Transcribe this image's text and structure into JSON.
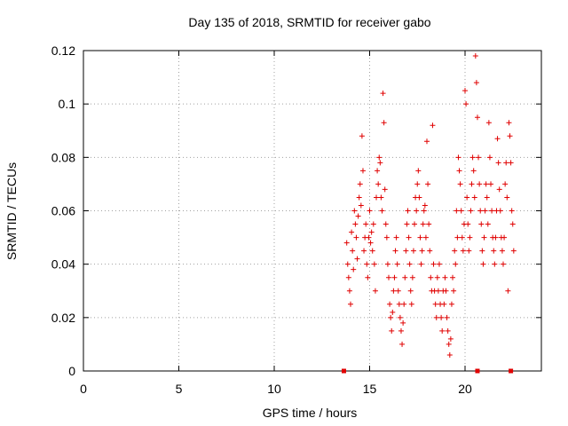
{
  "chart_data": {
    "type": "scatter",
    "title": "Day 135 of 2018, SRMTID for receiver gabo",
    "xlabel": "GPS time / hours",
    "ylabel": "SRMTID / TECUs",
    "xlim": [
      0,
      24
    ],
    "ylim": [
      0,
      0.12
    ],
    "x_ticks": [
      0,
      5,
      10,
      15,
      20
    ],
    "y_ticks": [
      0,
      0.02,
      0.04,
      0.06,
      0.08,
      0.1,
      0.12
    ],
    "grid": true,
    "marker": "+",
    "color": "#e00000",
    "series": [
      {
        "name": "SRMTID",
        "points": [
          [
            13.8,
            0.048
          ],
          [
            13.85,
            0.04
          ],
          [
            13.9,
            0.035
          ],
          [
            13.95,
            0.03
          ],
          [
            14.0,
            0.025
          ],
          [
            14.05,
            0.052
          ],
          [
            14.1,
            0.045
          ],
          [
            14.15,
            0.038
          ],
          [
            14.2,
            0.06
          ],
          [
            14.25,
            0.055
          ],
          [
            14.3,
            0.05
          ],
          [
            14.35,
            0.042
          ],
          [
            14.4,
            0.058
          ],
          [
            14.45,
            0.065
          ],
          [
            14.5,
            0.07
          ],
          [
            14.55,
            0.062
          ],
          [
            14.6,
            0.088
          ],
          [
            14.65,
            0.075
          ],
          [
            14.7,
            0.045
          ],
          [
            14.75,
            0.05
          ],
          [
            14.8,
            0.055
          ],
          [
            14.85,
            0.04
          ],
          [
            14.9,
            0.035
          ],
          [
            14.95,
            0.05
          ],
          [
            15.0,
            0.06
          ],
          [
            15.05,
            0.048
          ],
          [
            15.1,
            0.052
          ],
          [
            15.15,
            0.045
          ],
          [
            15.2,
            0.055
          ],
          [
            15.25,
            0.04
          ],
          [
            15.3,
            0.03
          ],
          [
            15.35,
            0.065
          ],
          [
            15.4,
            0.075
          ],
          [
            15.45,
            0.07
          ],
          [
            15.5,
            0.08
          ],
          [
            15.55,
            0.078
          ],
          [
            15.6,
            0.065
          ],
          [
            15.65,
            0.06
          ],
          [
            15.7,
            0.104
          ],
          [
            15.75,
            0.093
          ],
          [
            15.8,
            0.068
          ],
          [
            15.85,
            0.055
          ],
          [
            15.9,
            0.05
          ],
          [
            15.95,
            0.04
          ],
          [
            16.0,
            0.035
          ],
          [
            16.05,
            0.025
          ],
          [
            16.1,
            0.02
          ],
          [
            16.15,
            0.015
          ],
          [
            16.2,
            0.022
          ],
          [
            16.25,
            0.03
          ],
          [
            16.3,
            0.035
          ],
          [
            16.35,
            0.045
          ],
          [
            16.4,
            0.05
          ],
          [
            16.45,
            0.04
          ],
          [
            16.5,
            0.03
          ],
          [
            16.55,
            0.025
          ],
          [
            16.6,
            0.02
          ],
          [
            16.65,
            0.015
          ],
          [
            16.7,
            0.01
          ],
          [
            16.75,
            0.018
          ],
          [
            16.8,
            0.025
          ],
          [
            16.85,
            0.035
          ],
          [
            16.9,
            0.045
          ],
          [
            16.95,
            0.055
          ],
          [
            17.0,
            0.06
          ],
          [
            17.05,
            0.05
          ],
          [
            17.1,
            0.04
          ],
          [
            17.15,
            0.03
          ],
          [
            17.2,
            0.025
          ],
          [
            17.25,
            0.035
          ],
          [
            17.3,
            0.045
          ],
          [
            17.35,
            0.055
          ],
          [
            17.4,
            0.065
          ],
          [
            17.45,
            0.06
          ],
          [
            17.5,
            0.07
          ],
          [
            17.55,
            0.075
          ],
          [
            17.6,
            0.065
          ],
          [
            17.65,
            0.05
          ],
          [
            17.7,
            0.04
          ],
          [
            17.75,
            0.045
          ],
          [
            17.8,
            0.055
          ],
          [
            17.85,
            0.06
          ],
          [
            17.9,
            0.062
          ],
          [
            17.95,
            0.05
          ],
          [
            18.0,
            0.086
          ],
          [
            18.05,
            0.07
          ],
          [
            18.1,
            0.055
          ],
          [
            18.15,
            0.045
          ],
          [
            18.2,
            0.035
          ],
          [
            18.25,
            0.03
          ],
          [
            18.3,
            0.092
          ],
          [
            18.35,
            0.04
          ],
          [
            18.4,
            0.03
          ],
          [
            18.45,
            0.025
          ],
          [
            18.5,
            0.02
          ],
          [
            18.55,
            0.035
          ],
          [
            18.6,
            0.03
          ],
          [
            18.65,
            0.04
          ],
          [
            18.7,
            0.025
          ],
          [
            18.75,
            0.02
          ],
          [
            18.8,
            0.015
          ],
          [
            18.85,
            0.03
          ],
          [
            18.9,
            0.025
          ],
          [
            18.95,
            0.035
          ],
          [
            19.0,
            0.03
          ],
          [
            19.05,
            0.02
          ],
          [
            19.1,
            0.015
          ],
          [
            19.15,
            0.01
          ],
          [
            19.2,
            0.006
          ],
          [
            19.25,
            0.012
          ],
          [
            19.3,
            0.025
          ],
          [
            19.35,
            0.035
          ],
          [
            19.4,
            0.03
          ],
          [
            19.45,
            0.045
          ],
          [
            19.5,
            0.04
          ],
          [
            19.55,
            0.06
          ],
          [
            19.6,
            0.05
          ],
          [
            19.65,
            0.08
          ],
          [
            19.7,
            0.075
          ],
          [
            19.75,
            0.07
          ],
          [
            19.8,
            0.06
          ],
          [
            19.85,
            0.05
          ],
          [
            19.9,
            0.045
          ],
          [
            19.95,
            0.055
          ],
          [
            20.0,
            0.105
          ],
          [
            20.05,
            0.1
          ],
          [
            20.1,
            0.065
          ],
          [
            20.15,
            0.055
          ],
          [
            20.2,
            0.045
          ],
          [
            20.25,
            0.05
          ],
          [
            20.3,
            0.06
          ],
          [
            20.35,
            0.07
          ],
          [
            20.4,
            0.08
          ],
          [
            20.45,
            0.075
          ],
          [
            20.5,
            0.065
          ],
          [
            20.55,
            0.118
          ],
          [
            20.6,
            0.108
          ],
          [
            20.65,
            0.095
          ],
          [
            20.7,
            0.08
          ],
          [
            20.75,
            0.07
          ],
          [
            20.8,
            0.06
          ],
          [
            20.85,
            0.055
          ],
          [
            20.9,
            0.045
          ],
          [
            20.95,
            0.04
          ],
          [
            21.0,
            0.05
          ],
          [
            21.05,
            0.06
          ],
          [
            21.1,
            0.07
          ],
          [
            21.15,
            0.065
          ],
          [
            21.2,
            0.055
          ],
          [
            21.25,
            0.093
          ],
          [
            21.3,
            0.08
          ],
          [
            21.35,
            0.07
          ],
          [
            21.4,
            0.06
          ],
          [
            21.45,
            0.05
          ],
          [
            21.5,
            0.045
          ],
          [
            21.55,
            0.04
          ],
          [
            21.6,
            0.05
          ],
          [
            21.65,
            0.06
          ],
          [
            21.7,
            0.087
          ],
          [
            21.75,
            0.078
          ],
          [
            21.8,
            0.068
          ],
          [
            21.85,
            0.06
          ],
          [
            21.9,
            0.05
          ],
          [
            21.95,
            0.045
          ],
          [
            22.0,
            0.04
          ],
          [
            22.05,
            0.05
          ],
          [
            22.1,
            0.07
          ],
          [
            22.15,
            0.078
          ],
          [
            22.2,
            0.065
          ],
          [
            22.25,
            0.03
          ],
          [
            22.3,
            0.093
          ],
          [
            22.35,
            0.088
          ],
          [
            22.4,
            0.078
          ],
          [
            22.45,
            0.06
          ],
          [
            22.5,
            0.055
          ],
          [
            22.55,
            0.045
          ]
        ]
      }
    ],
    "baseline_markers": [
      13.65,
      20.65,
      22.4
    ]
  }
}
